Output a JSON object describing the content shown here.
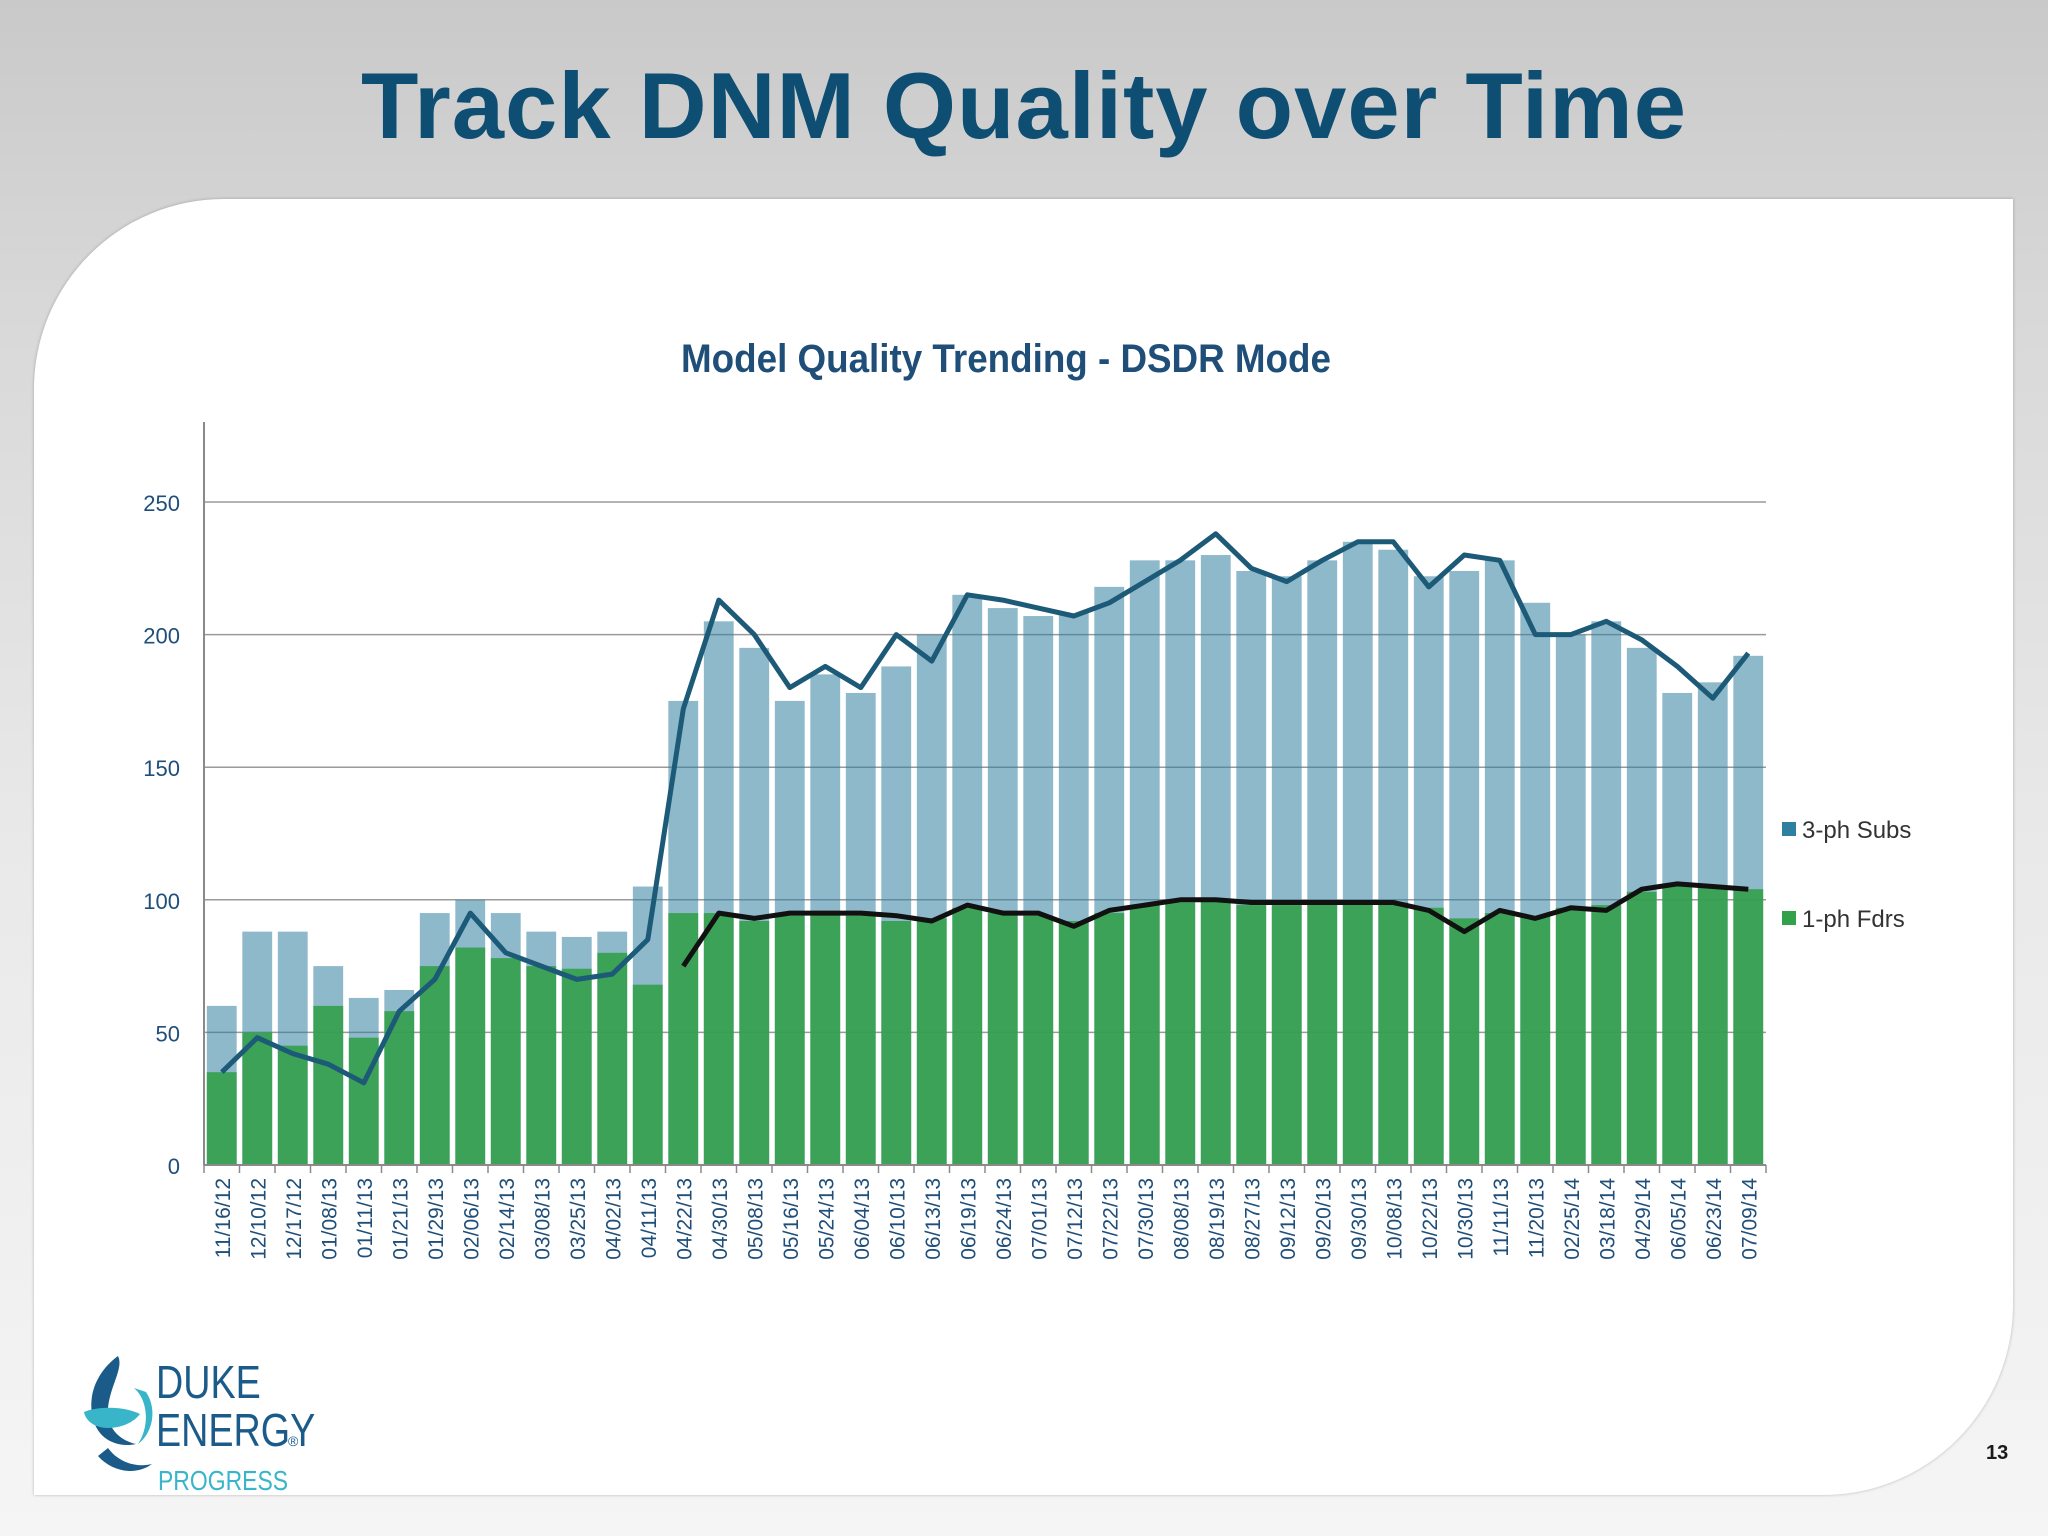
{
  "slide": {
    "title": "Track DNM Quality over Time",
    "page_number": "13"
  },
  "logo": {
    "line1": "DUKE",
    "line2": "ENERGY",
    "reg": "®",
    "line3": "PROGRESS"
  },
  "colors": {
    "title": "#0e4e72",
    "subs_bar": "#2f7fa0",
    "subs_line": "#1c5a78",
    "fdrs_bar": "#33a04a",
    "fdrs_line": "#111111",
    "chart_title": "#1f4e79",
    "logo_blue": "#1b5b8a",
    "logo_teal": "#38b5c8"
  },
  "chart_data": {
    "type": "bar",
    "title": "Model Quality Trending - DSDR Mode",
    "xlabel": "",
    "ylabel": "",
    "ylim": [
      0,
      280
    ],
    "yticks": [
      0,
      50,
      100,
      150,
      200,
      250
    ],
    "grid": true,
    "legend_position": "right",
    "categories": [
      "11/16/12",
      "12/10/12",
      "12/17/12",
      "01/08/13",
      "01/11/13",
      "01/21/13",
      "01/29/13",
      "02/06/13",
      "02/14/13",
      "03/08/13",
      "03/25/13",
      "04/02/13",
      "04/11/13",
      "04/22/13",
      "04/30/13",
      "05/08/13",
      "05/16/13",
      "05/24/13",
      "06/04/13",
      "06/10/13",
      "06/13/13",
      "06/19/13",
      "06/24/13",
      "07/01/13",
      "07/12/13",
      "07/22/13",
      "07/30/13",
      "08/08/13",
      "08/19/13",
      "08/27/13",
      "09/12/13",
      "09/20/13",
      "09/30/13",
      "10/08/13",
      "10/22/13",
      "10/30/13",
      "11/11/13",
      "11/20/13",
      "02/25/14",
      "03/18/14",
      "04/29/14",
      "06/05/14",
      "06/23/14",
      "07/09/14"
    ],
    "series": [
      {
        "name": "3-ph Subs",
        "kind": "bar",
        "values": [
          60,
          88,
          88,
          75,
          63,
          66,
          95,
          100,
          95,
          88,
          86,
          88,
          105,
          175,
          205,
          195,
          175,
          185,
          178,
          188,
          200,
          215,
          210,
          207,
          208,
          218,
          228,
          228,
          230,
          224,
          222,
          228,
          235,
          232,
          222,
          224,
          228,
          212,
          200,
          205,
          195,
          178,
          182,
          192
        ]
      },
      {
        "name": "1-ph Fdrs",
        "kind": "bar",
        "values": [
          35,
          50,
          45,
          60,
          48,
          58,
          75,
          82,
          78,
          75,
          74,
          80,
          68,
          95,
          95,
          92,
          94,
          95,
          94,
          92,
          93,
          97,
          95,
          94,
          92,
          95,
          98,
          99,
          100,
          98,
          98,
          99,
          99,
          99,
          97,
          93,
          95,
          94,
          97,
          98,
          103,
          106,
          105,
          104
        ]
      },
      {
        "name": "",
        "kind": "line",
        "values": [
          35,
          48,
          42,
          38,
          31,
          58,
          70,
          95,
          80,
          75,
          70,
          72,
          85,
          172,
          213,
          200,
          180,
          188,
          180,
          200,
          190,
          215,
          213,
          210,
          207,
          212,
          220,
          228,
          238,
          225,
          220,
          228,
          235,
          235,
          218,
          230,
          228,
          200,
          200,
          205,
          198,
          188,
          176,
          193
        ]
      },
      {
        "name": "",
        "kind": "line",
        "values": [
          null,
          null,
          null,
          null,
          null,
          null,
          null,
          null,
          null,
          null,
          null,
          null,
          null,
          75,
          95,
          93,
          95,
          95,
          95,
          94,
          92,
          98,
          95,
          95,
          90,
          96,
          98,
          100,
          100,
          99,
          99,
          99,
          99,
          99,
          96,
          88,
          96,
          93,
          97,
          96,
          104,
          106,
          105,
          104
        ]
      }
    ]
  }
}
